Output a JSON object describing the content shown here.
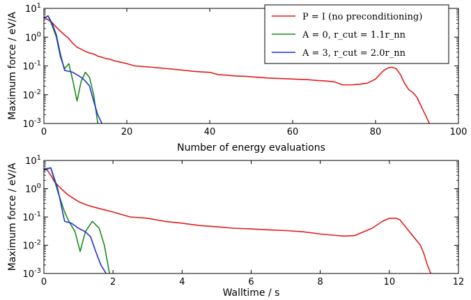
{
  "chart_data": [
    {
      "type": "line",
      "xlabel": "Number of energy evaluations",
      "ylabel": "Maximum force / eV/A",
      "xlim": [
        0,
        100
      ],
      "ylim": [
        0.001,
        10
      ],
      "yscale": "log",
      "xticks": [
        "0",
        "20",
        "40",
        "60",
        "80",
        "100"
      ],
      "yticks": [
        {
          "base": "10",
          "exp": "1"
        },
        {
          "base": "10",
          "exp": "0"
        },
        {
          "base": "10",
          "exp": "-1"
        },
        {
          "base": "10",
          "exp": "-2"
        },
        {
          "base": "10",
          "exp": "-3"
        }
      ],
      "legend": {
        "placement": "top-right",
        "entries": [
          {
            "label": "P = I (no preconditioning)",
            "color": "#e31a1c"
          },
          {
            "label": "A = 0, r_cut = 1.1r_nn",
            "color": "#1a8c1a"
          },
          {
            "label": "A = 3, r_cut = 2.0r_nn",
            "color": "#1f2fd6"
          }
        ]
      },
      "series": [
        {
          "name": "P = I (no preconditioning)",
          "color": "#e31a1c",
          "x": [
            0,
            1,
            2,
            3,
            4,
            5,
            6,
            7,
            8,
            9,
            10,
            11,
            12,
            13,
            14,
            15,
            16,
            17,
            18,
            19,
            20,
            22,
            24,
            26,
            28,
            30,
            32,
            34,
            36,
            38,
            40,
            42,
            44,
            46,
            48,
            50,
            52,
            54,
            56,
            58,
            60,
            62,
            64,
            66,
            68,
            70,
            71,
            72,
            74,
            76,
            78,
            80,
            81,
            82,
            83,
            84,
            85,
            86,
            87,
            88,
            89,
            90,
            91,
            92,
            93
          ],
          "y": [
            5.0,
            4.0,
            3.2,
            2.2,
            1.6,
            1.2,
            0.9,
            0.6,
            0.45,
            0.38,
            0.32,
            0.28,
            0.26,
            0.22,
            0.2,
            0.18,
            0.17,
            0.15,
            0.14,
            0.13,
            0.12,
            0.1,
            0.095,
            0.09,
            0.085,
            0.08,
            0.075,
            0.07,
            0.065,
            0.062,
            0.06,
            0.05,
            0.048,
            0.045,
            0.044,
            0.042,
            0.04,
            0.038,
            0.037,
            0.036,
            0.035,
            0.034,
            0.033,
            0.031,
            0.03,
            0.028,
            0.025,
            0.022,
            0.022,
            0.023,
            0.025,
            0.035,
            0.05,
            0.07,
            0.085,
            0.09,
            0.08,
            0.05,
            0.025,
            0.015,
            0.012,
            0.008,
            0.004,
            0.002,
            0.001
          ]
        },
        {
          "name": "A = 0, r_cut = 1.1r_nn",
          "color": "#1a8c1a",
          "x": [
            0,
            1,
            2,
            3,
            4,
            5,
            6,
            7,
            8,
            9,
            10,
            11,
            12,
            13
          ],
          "y": [
            4.5,
            5.5,
            2.5,
            1.0,
            0.2,
            0.08,
            0.12,
            0.03,
            0.006,
            0.03,
            0.06,
            0.04,
            0.01,
            0.001
          ]
        },
        {
          "name": "A = 3, r_cut = 2.0r_nn",
          "color": "#1f2fd6",
          "x": [
            0,
            1,
            2,
            3,
            4,
            5,
            7,
            9,
            10,
            11,
            12,
            13,
            14
          ],
          "y": [
            4.5,
            5.5,
            3.0,
            1.2,
            0.25,
            0.07,
            0.06,
            0.04,
            0.03,
            0.02,
            0.006,
            0.002,
            0.001
          ]
        }
      ]
    },
    {
      "type": "line",
      "xlabel": "Walltime / s",
      "ylabel": "Maximum force / eV/A",
      "xlim": [
        0,
        12
      ],
      "ylim": [
        0.001,
        10
      ],
      "yscale": "log",
      "xticks": [
        "0",
        "2",
        "4",
        "6",
        "8",
        "10",
        "12"
      ],
      "yticks": [
        {
          "base": "10",
          "exp": "1"
        },
        {
          "base": "10",
          "exp": "0"
        },
        {
          "base": "10",
          "exp": "-1"
        },
        {
          "base": "10",
          "exp": "-2"
        },
        {
          "base": "10",
          "exp": "-3"
        }
      ],
      "series": [
        {
          "name": "P = I (no preconditioning)",
          "color": "#e31a1c",
          "x": [
            0,
            0.1,
            0.2,
            0.3,
            0.5,
            0.7,
            1.0,
            1.3,
            1.6,
            2.0,
            2.5,
            3.0,
            3.5,
            4.0,
            4.5,
            5.0,
            5.5,
            6.0,
            6.5,
            7.0,
            7.5,
            8.0,
            8.5,
            8.7,
            9.0,
            9.5,
            9.8,
            10.0,
            10.2,
            10.3,
            10.5,
            10.7,
            10.9,
            11.0,
            11.1,
            11.2
          ],
          "y": [
            5.0,
            4.5,
            3.0,
            1.8,
            1.0,
            0.6,
            0.35,
            0.25,
            0.2,
            0.15,
            0.1,
            0.09,
            0.07,
            0.06,
            0.05,
            0.045,
            0.04,
            0.038,
            0.035,
            0.033,
            0.03,
            0.025,
            0.022,
            0.021,
            0.022,
            0.04,
            0.07,
            0.09,
            0.09,
            0.08,
            0.04,
            0.02,
            0.01,
            0.005,
            0.002,
            0.001
          ]
        },
        {
          "name": "A = 0, r_cut = 1.1r_nn",
          "color": "#1a8c1a",
          "x": [
            0,
            0.2,
            0.4,
            0.6,
            0.7,
            0.9,
            1.05,
            1.2,
            1.4,
            1.6,
            1.75,
            1.9
          ],
          "y": [
            5.0,
            5.5,
            0.8,
            0.15,
            0.08,
            0.03,
            0.006,
            0.03,
            0.07,
            0.04,
            0.01,
            0.001
          ]
        },
        {
          "name": "A = 3, r_cut = 2.0r_nn",
          "color": "#1f2fd6",
          "x": [
            0,
            0.2,
            0.4,
            0.6,
            0.8,
            1.0,
            1.2,
            1.35,
            1.5,
            1.65,
            1.8
          ],
          "y": [
            4.5,
            5.5,
            1.0,
            0.07,
            0.06,
            0.04,
            0.03,
            0.02,
            0.006,
            0.002,
            0.001
          ]
        }
      ]
    }
  ]
}
